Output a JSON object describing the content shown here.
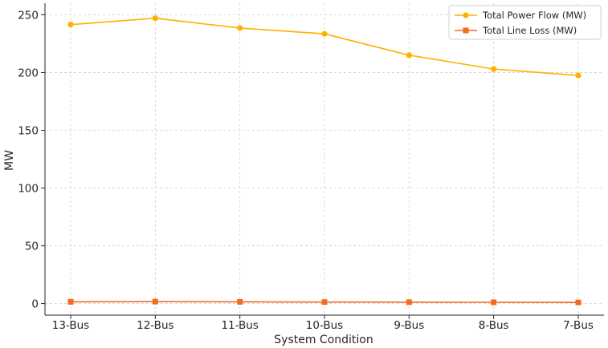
{
  "chart_data": {
    "type": "line",
    "title": "",
    "xlabel": "System Condition",
    "ylabel": "MW",
    "categories": [
      "13-Bus",
      "12-Bus",
      "11-Bus",
      "10-Bus",
      "9-Bus",
      "8-Bus",
      "7-Bus"
    ],
    "ylim": [
      -10,
      260
    ],
    "yticks": [
      0,
      50,
      100,
      150,
      200,
      250
    ],
    "grid": true,
    "legend_position": "top-right",
    "series": [
      {
        "name": "Total Power Flow (MW)",
        "marker": "circle",
        "color": "#FFB000",
        "values": [
          241.5,
          247.0,
          238.5,
          233.5,
          215.0,
          203.0,
          197.5
        ]
      },
      {
        "name": "Total Line Loss (MW)",
        "marker": "square",
        "color": "#F26B21",
        "values": [
          1.5,
          1.7,
          1.5,
          1.3,
          1.2,
          1.1,
          1.0
        ]
      }
    ]
  }
}
